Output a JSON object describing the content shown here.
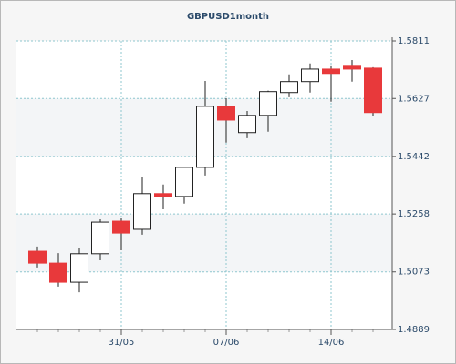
{
  "chart_data": {
    "type": "candlestick",
    "title": "GBPUSD1month",
    "categories": [
      null,
      null,
      null,
      null,
      "31/05",
      null,
      null,
      null,
      null,
      "07/06",
      null,
      null,
      null,
      null,
      "14/06",
      null,
      null
    ],
    "open": [
      1.5139,
      1.5101,
      1.504,
      1.5131,
      1.5235,
      1.5209,
      1.5323,
      1.5314,
      1.5407,
      1.5602,
      1.5518,
      1.5573,
      1.5646,
      1.5681,
      1.5721,
      1.5733,
      1.5724
    ],
    "high": [
      1.5154,
      1.5133,
      1.5148,
      1.5241,
      1.5244,
      1.5375,
      1.5352,
      1.5407,
      1.5683,
      1.5628,
      1.5587,
      1.5652,
      1.5704,
      1.5739,
      1.5733,
      1.575,
      1.5727
    ],
    "low": [
      1.5087,
      1.5026,
      1.5008,
      1.511,
      1.5142,
      1.5192,
      1.5273,
      1.5291,
      1.5381,
      1.5486,
      1.55,
      1.5521,
      1.5631,
      1.5646,
      1.5617,
      1.5681,
      1.557
    ],
    "close": [
      1.5101,
      1.504,
      1.5131,
      1.5232,
      1.5197,
      1.5323,
      1.5314,
      1.5407,
      1.5602,
      1.5558,
      1.5573,
      1.5649,
      1.5681,
      1.5721,
      1.5707,
      1.5721,
      1.5582
    ],
    "up_color": "#ffffff",
    "down_color": "#e8393b",
    "ylim": [
      1.4889,
      1.5811
    ],
    "yticks": [
      1.4889,
      1.5073,
      1.5258,
      1.5442,
      1.5627,
      1.5811
    ],
    "grid": true
  }
}
